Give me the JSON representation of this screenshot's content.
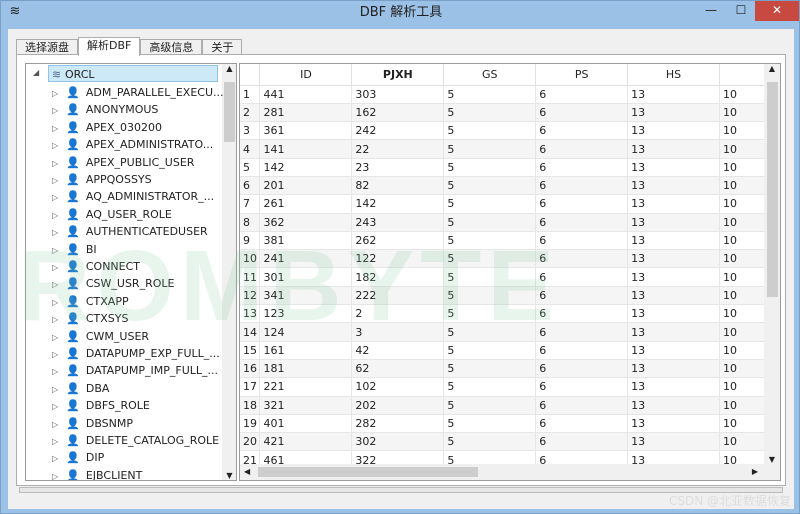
{
  "window": {
    "title": "DBF 解析工具",
    "minimize": "—",
    "maximize": "☐",
    "close": "✕"
  },
  "tabs": [
    {
      "label": "选择源盘"
    },
    {
      "label": "解析DBF"
    },
    {
      "label": "高级信息"
    },
    {
      "label": "关于"
    }
  ],
  "active_tab": 1,
  "tree": {
    "root": "ORCL",
    "items": [
      "ADM_PARALLEL_EXECU...",
      "ANONYMOUS",
      "APEX_030200",
      "APEX_ADMINISTRATO...",
      "APEX_PUBLIC_USER",
      "APPQOSSYS",
      "AQ_ADMINISTRATOR_...",
      "AQ_USER_ROLE",
      "AUTHENTICATEDUSER",
      "BI",
      "CONNECT",
      "CSW_USR_ROLE",
      "CTXAPP",
      "CTXSYS",
      "CWM_USER",
      "DATAPUMP_EXP_FULL_...",
      "DATAPUMP_IMP_FULL_...",
      "DBA",
      "DBFS_ROLE",
      "DBSNMP",
      "DELETE_CATALOG_ROLE",
      "DIP",
      "EJBCLIENT"
    ]
  },
  "table": {
    "columns": [
      "",
      "ID",
      "PJXH",
      "GS",
      "PS",
      "HS",
      ""
    ],
    "rows": [
      [
        "1",
        "441",
        "303",
        "5",
        "6",
        "13",
        "10"
      ],
      [
        "2",
        "281",
        "162",
        "5",
        "6",
        "13",
        "10"
      ],
      [
        "3",
        "361",
        "242",
        "5",
        "6",
        "13",
        "10"
      ],
      [
        "4",
        "141",
        "22",
        "5",
        "6",
        "13",
        "10"
      ],
      [
        "5",
        "142",
        "23",
        "5",
        "6",
        "13",
        "10"
      ],
      [
        "6",
        "201",
        "82",
        "5",
        "6",
        "13",
        "10"
      ],
      [
        "7",
        "261",
        "142",
        "5",
        "6",
        "13",
        "10"
      ],
      [
        "8",
        "362",
        "243",
        "5",
        "6",
        "13",
        "10"
      ],
      [
        "9",
        "381",
        "262",
        "5",
        "6",
        "13",
        "10"
      ],
      [
        "10",
        "241",
        "122",
        "5",
        "6",
        "13",
        "10"
      ],
      [
        "11",
        "301",
        "182",
        "5",
        "6",
        "13",
        "10"
      ],
      [
        "12",
        "341",
        "222",
        "5",
        "6",
        "13",
        "10"
      ],
      [
        "13",
        "123",
        "2",
        "5",
        "6",
        "13",
        "10"
      ],
      [
        "14",
        "124",
        "3",
        "5",
        "6",
        "13",
        "10"
      ],
      [
        "15",
        "161",
        "42",
        "5",
        "6",
        "13",
        "10"
      ],
      [
        "16",
        "181",
        "62",
        "5",
        "6",
        "13",
        "10"
      ],
      [
        "17",
        "221",
        "102",
        "5",
        "6",
        "13",
        "10"
      ],
      [
        "18",
        "321",
        "202",
        "5",
        "6",
        "13",
        "10"
      ],
      [
        "19",
        "401",
        "282",
        "5",
        "6",
        "13",
        "10"
      ],
      [
        "20",
        "421",
        "302",
        "5",
        "6",
        "13",
        "10"
      ],
      [
        "21",
        "461",
        "322",
        "5",
        "6",
        "13",
        "10"
      ]
    ]
  },
  "watermark": "ROMBYTE",
  "csdn": "CSDN @北亚数据恢复"
}
